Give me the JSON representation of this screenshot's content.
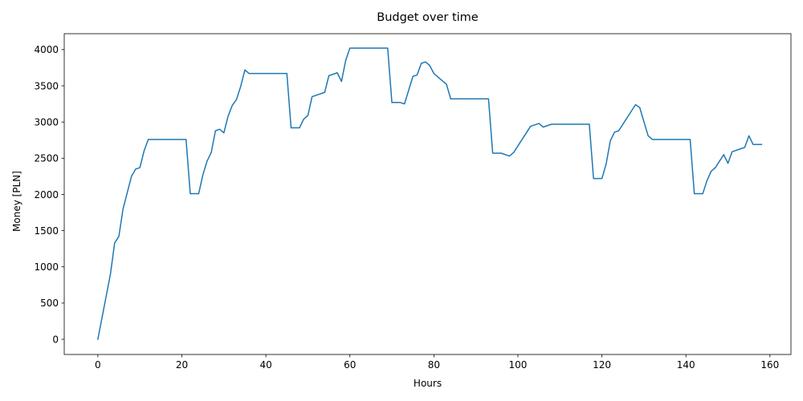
{
  "chart_data": {
    "type": "line",
    "title": "Budget over time",
    "xlabel": "Hours",
    "ylabel": "Money [PLN]",
    "xlim": [
      -8,
      165
    ],
    "ylim": [
      -210,
      4220
    ],
    "xticks": [
      0,
      20,
      40,
      60,
      80,
      100,
      120,
      140,
      160
    ],
    "yticks": [
      0,
      500,
      1000,
      1500,
      2000,
      2500,
      3000,
      3500,
      4000
    ],
    "grid": false,
    "color": "#1f77b4",
    "series": [
      {
        "points": [
          [
            0,
            0
          ],
          [
            3,
            900
          ],
          [
            4,
            1330
          ],
          [
            5,
            1420
          ],
          [
            6,
            1800
          ],
          [
            8,
            2250
          ],
          [
            9,
            2350
          ],
          [
            10,
            2370
          ],
          [
            11,
            2600
          ],
          [
            12,
            2760
          ],
          [
            21,
            2760
          ],
          [
            22,
            2010
          ],
          [
            24,
            2010
          ],
          [
            25,
            2270
          ],
          [
            26,
            2460
          ],
          [
            27,
            2580
          ],
          [
            28,
            2880
          ],
          [
            29,
            2900
          ],
          [
            30,
            2850
          ],
          [
            31,
            3080
          ],
          [
            32,
            3230
          ],
          [
            33,
            3310
          ],
          [
            34,
            3490
          ],
          [
            35,
            3720
          ],
          [
            36,
            3670
          ],
          [
            45,
            3670
          ],
          [
            46,
            2920
          ],
          [
            48,
            2920
          ],
          [
            49,
            3040
          ],
          [
            50,
            3090
          ],
          [
            51,
            3350
          ],
          [
            54,
            3410
          ],
          [
            55,
            3640
          ],
          [
            57,
            3680
          ],
          [
            58,
            3560
          ],
          [
            59,
            3850
          ],
          [
            60,
            4020
          ],
          [
            69,
            4020
          ],
          [
            70,
            3270
          ],
          [
            72,
            3270
          ],
          [
            73,
            3250
          ],
          [
            75,
            3630
          ],
          [
            76,
            3650
          ],
          [
            77,
            3810
          ],
          [
            78,
            3830
          ],
          [
            79,
            3780
          ],
          [
            80,
            3670
          ],
          [
            83,
            3520
          ],
          [
            84,
            3320
          ],
          [
            93,
            3320
          ],
          [
            94,
            2570
          ],
          [
            96,
            2570
          ],
          [
            98,
            2530
          ],
          [
            99,
            2580
          ],
          [
            103,
            2940
          ],
          [
            105,
            2980
          ],
          [
            106,
            2930
          ],
          [
            108,
            2970
          ],
          [
            117,
            2970
          ],
          [
            118,
            2220
          ],
          [
            120,
            2220
          ],
          [
            121,
            2420
          ],
          [
            122,
            2740
          ],
          [
            123,
            2860
          ],
          [
            124,
            2880
          ],
          [
            128,
            3240
          ],
          [
            129,
            3200
          ],
          [
            131,
            2810
          ],
          [
            132,
            2760
          ],
          [
            141,
            2760
          ],
          [
            142,
            2010
          ],
          [
            144,
            2010
          ],
          [
            145,
            2190
          ],
          [
            146,
            2320
          ],
          [
            147,
            2370
          ],
          [
            149,
            2550
          ],
          [
            150,
            2430
          ],
          [
            151,
            2590
          ],
          [
            154,
            2650
          ],
          [
            155,
            2810
          ],
          [
            156,
            2690
          ],
          [
            158,
            2690
          ]
        ]
      }
    ]
  }
}
